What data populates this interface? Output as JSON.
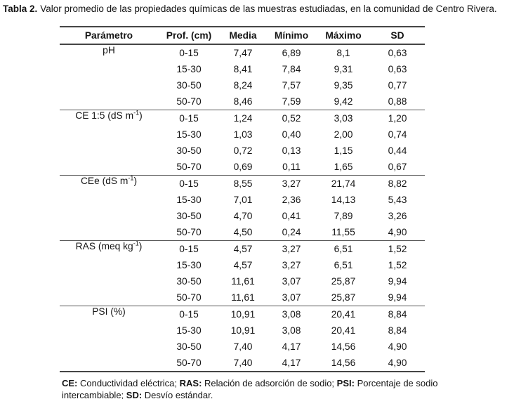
{
  "title": {
    "label": "Tabla 2.",
    "text": "Valor promedio de las propiedades químicas de las muestras estudiadas, en la comunidad de Centro Rivera."
  },
  "table": {
    "headers": [
      "Parámetro",
      "Prof. (cm)",
      "Media",
      "Mínimo",
      "Máximo",
      "SD"
    ],
    "column_keys": [
      "prof",
      "media",
      "minimo",
      "maximo",
      "sd"
    ],
    "sections": [
      {
        "param": {
          "base": "pH",
          "sup": "",
          "end": ""
        },
        "rows": [
          {
            "prof": "0-15",
            "media": "7,47",
            "minimo": "6,89",
            "maximo": "8,1",
            "sd": "0,63"
          },
          {
            "prof": "15-30",
            "media": "8,41",
            "minimo": "7,84",
            "maximo": "9,31",
            "sd": "0,63"
          },
          {
            "prof": "30-50",
            "media": "8,24",
            "minimo": "7,57",
            "maximo": "9,35",
            "sd": "0,77"
          },
          {
            "prof": "50-70",
            "media": "8,46",
            "minimo": "7,59",
            "maximo": "9,42",
            "sd": "0,88"
          }
        ]
      },
      {
        "param": {
          "base": "CE 1:5 (dS m",
          "sup": "-1",
          "end": ")"
        },
        "rows": [
          {
            "prof": "0-15",
            "media": "1,24",
            "minimo": "0,52",
            "maximo": "3,03",
            "sd": "1,20"
          },
          {
            "prof": "15-30",
            "media": "1,03",
            "minimo": "0,40",
            "maximo": "2,00",
            "sd": "0,74"
          },
          {
            "prof": "30-50",
            "media": "0,72",
            "minimo": "0,13",
            "maximo": "1,15",
            "sd": "0,44"
          },
          {
            "prof": "50-70",
            "media": "0,69",
            "minimo": "0,11",
            "maximo": "1,65",
            "sd": "0,67"
          }
        ]
      },
      {
        "param": {
          "base": "CEe (dS m",
          "sup": "-1",
          "end": ")"
        },
        "rows": [
          {
            "prof": "0-15",
            "media": "8,55",
            "minimo": "3,27",
            "maximo": "21,74",
            "sd": "8,82"
          },
          {
            "prof": "15-30",
            "media": "7,01",
            "minimo": "2,36",
            "maximo": "14,13",
            "sd": "5,43"
          },
          {
            "prof": "30-50",
            "media": "4,70",
            "minimo": "0,41",
            "maximo": "7,89",
            "sd": "3,26"
          },
          {
            "prof": "50-70",
            "media": "4,50",
            "minimo": "0,24",
            "maximo": "11,55",
            "sd": "4,90"
          }
        ]
      },
      {
        "param": {
          "base": "RAS (meq kg",
          "sup": "-1",
          "end": ")"
        },
        "rows": [
          {
            "prof": "0-15",
            "media": "4,57",
            "minimo": "3,27",
            "maximo": "6,51",
            "sd": "1,52"
          },
          {
            "prof": "15-30",
            "media": "4,57",
            "minimo": "3,27",
            "maximo": "6,51",
            "sd": "1,52"
          },
          {
            "prof": "30-50",
            "media": "11,61",
            "minimo": "3,07",
            "maximo": "25,87",
            "sd": "9,94"
          },
          {
            "prof": "50-70",
            "media": "11,61",
            "minimo": "3,07",
            "maximo": "25,87",
            "sd": "9,94"
          }
        ]
      },
      {
        "param": {
          "base": "PSI (%)",
          "sup": "",
          "end": ""
        },
        "rows": [
          {
            "prof": "0-15",
            "media": "10,91",
            "minimo": "3,08",
            "maximo": "20,41",
            "sd": "8,84"
          },
          {
            "prof": "15-30",
            "media": "10,91",
            "minimo": "3,08",
            "maximo": "20,41",
            "sd": "8,84"
          },
          {
            "prof": "30-50",
            "media": "7,40",
            "minimo": "4,17",
            "maximo": "14,56",
            "sd": "4,90"
          },
          {
            "prof": "50-70",
            "media": "7,40",
            "minimo": "4,17",
            "maximo": "14,56",
            "sd": "4,90"
          }
        ]
      }
    ]
  },
  "footnote": {
    "parts": [
      {
        "bold": "CE:",
        "text": " Conductividad eléctrica; "
      },
      {
        "bold": "RAS:",
        "text": " Relación de adsorción de sodio; "
      },
      {
        "bold": "PSI:",
        "text": " Porcentaje de sodio intercambiable; "
      },
      {
        "bold": "SD:",
        "text": " Desvío estándar."
      }
    ]
  }
}
